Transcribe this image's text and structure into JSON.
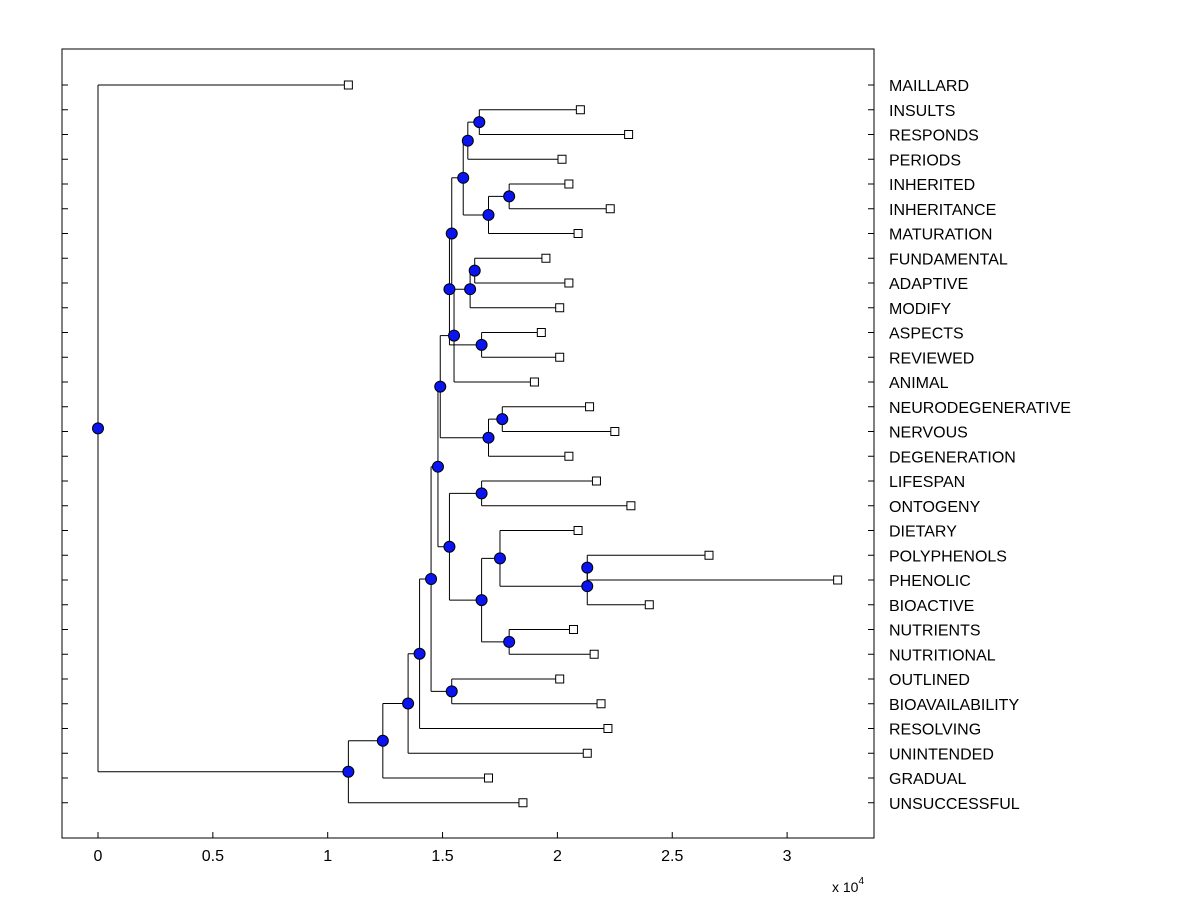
{
  "chart_data": {
    "type": "dendrogram",
    "title": "",
    "xlabel": "",
    "ylabel": "",
    "x_scale": {
      "prefix": "x 10",
      "exponent": "4"
    },
    "xlim": [
      -0.15,
      3.35
    ],
    "xticks": [
      0,
      0.5,
      1,
      1.5,
      2,
      2.5,
      3
    ],
    "xtick_labels": [
      "0",
      "0.5",
      "1",
      "1.5",
      "2",
      "2.5",
      "3"
    ],
    "colors": {
      "node_fill": "#0a14f0",
      "line": "#000000",
      "leaf_fill": "#ffffff"
    },
    "leaves": [
      {
        "label": "MAILLARD",
        "x": 1.09
      },
      {
        "label": "INSULTS",
        "x": 2.1
      },
      {
        "label": "RESPONDS",
        "x": 2.31
      },
      {
        "label": "PERIODS",
        "x": 2.02
      },
      {
        "label": "INHERITED",
        "x": 2.05
      },
      {
        "label": "INHERITANCE",
        "x": 2.23
      },
      {
        "label": "MATURATION",
        "x": 2.09
      },
      {
        "label": "FUNDAMENTAL",
        "x": 1.95
      },
      {
        "label": "ADAPTIVE",
        "x": 2.05
      },
      {
        "label": "MODIFY",
        "x": 2.01
      },
      {
        "label": "ASPECTS",
        "x": 1.93
      },
      {
        "label": "REVIEWED",
        "x": 2.01
      },
      {
        "label": "ANIMAL",
        "x": 1.9
      },
      {
        "label": "NEURODEGENERATIVE",
        "x": 2.14
      },
      {
        "label": "NERVOUS",
        "x": 2.25
      },
      {
        "label": "DEGENERATION",
        "x": 2.05
      },
      {
        "label": "LIFESPAN",
        "x": 2.17
      },
      {
        "label": "ONTOGENY",
        "x": 2.32
      },
      {
        "label": "DIETARY",
        "x": 2.09
      },
      {
        "label": "POLYPHENOLS",
        "x": 2.66
      },
      {
        "label": "PHENOLIC",
        "x": 3.22
      },
      {
        "label": "BIOACTIVE",
        "x": 2.4
      },
      {
        "label": "NUTRIENTS",
        "x": 2.07
      },
      {
        "label": "NUTRITIONAL",
        "x": 2.16
      },
      {
        "label": "OUTLINED",
        "x": 2.01
      },
      {
        "label": "BIOAVAILABILITY",
        "x": 2.19
      },
      {
        "label": "RESOLVING",
        "x": 2.22
      },
      {
        "label": "UNINTENDED",
        "x": 2.13
      },
      {
        "label": "GRADUAL",
        "x": 1.7
      },
      {
        "label": "UNSUCCESSFUL",
        "x": 1.85
      }
    ],
    "internal_nodes": [
      {
        "id": "n1",
        "x": 1.66,
        "children": [
          "L1",
          "L2"
        ]
      },
      {
        "id": "n2",
        "x": 1.61,
        "children": [
          "n1",
          "L3"
        ]
      },
      {
        "id": "n3",
        "x": 1.79,
        "children": [
          "L4",
          "L5"
        ]
      },
      {
        "id": "n4",
        "x": 1.7,
        "children": [
          "n3",
          "L6"
        ]
      },
      {
        "id": "n5",
        "x": 1.59,
        "children": [
          "n2",
          "n4"
        ]
      },
      {
        "id": "n6",
        "x": 1.64,
        "children": [
          "L7",
          "L8"
        ]
      },
      {
        "id": "n7",
        "x": 1.62,
        "children": [
          "n6",
          "L9"
        ]
      },
      {
        "id": "n8",
        "x": 1.54,
        "children": [
          "n5",
          "n7"
        ]
      },
      {
        "id": "n9",
        "x": 1.67,
        "children": [
          "L10",
          "L11"
        ]
      },
      {
        "id": "n10",
        "x": 1.53,
        "children": [
          "n8",
          "n9"
        ]
      },
      {
        "id": "n11",
        "x": 1.55,
        "children": [
          "n10",
          "L12"
        ]
      },
      {
        "id": "n12",
        "x": 1.76,
        "children": [
          "L13",
          "L14"
        ]
      },
      {
        "id": "n13",
        "x": 1.7,
        "children": [
          "n12",
          "L15"
        ]
      },
      {
        "id": "n14",
        "x": 1.49,
        "children": [
          "n11",
          "n13"
        ]
      },
      {
        "id": "n15",
        "x": 1.67,
        "children": [
          "L16",
          "L17"
        ]
      },
      {
        "id": "n16",
        "x": 2.13,
        "children": [
          "L19",
          "L20"
        ]
      },
      {
        "id": "n17",
        "x": 2.13,
        "children": [
          "n16",
          "L21"
        ]
      },
      {
        "id": "n18",
        "x": 1.75,
        "children": [
          "L18",
          "n17"
        ]
      },
      {
        "id": "n19",
        "x": 1.79,
        "children": [
          "L22",
          "L23"
        ]
      },
      {
        "id": "n20",
        "x": 1.67,
        "children": [
          "n18",
          "n19"
        ]
      },
      {
        "id": "n21",
        "x": 1.53,
        "children": [
          "n15",
          "n20"
        ]
      },
      {
        "id": "n22",
        "x": 1.48,
        "children": [
          "n14",
          "n21"
        ]
      },
      {
        "id": "n23",
        "x": 1.54,
        "children": [
          "L24",
          "L25"
        ]
      },
      {
        "id": "n24",
        "x": 1.45,
        "children": [
          "n22",
          "n23"
        ]
      },
      {
        "id": "n25",
        "x": 1.4,
        "children": [
          "n24",
          "L26"
        ]
      },
      {
        "id": "n26",
        "x": 1.35,
        "children": [
          "n25",
          "L27"
        ]
      },
      {
        "id": "n27",
        "x": 1.24,
        "children": [
          "n26",
          "L28"
        ]
      },
      {
        "id": "n28",
        "x": 1.09,
        "children": [
          "n27",
          "L29"
        ]
      },
      {
        "id": "root",
        "x": 0.0,
        "children": [
          "L0",
          "n28"
        ]
      }
    ]
  }
}
